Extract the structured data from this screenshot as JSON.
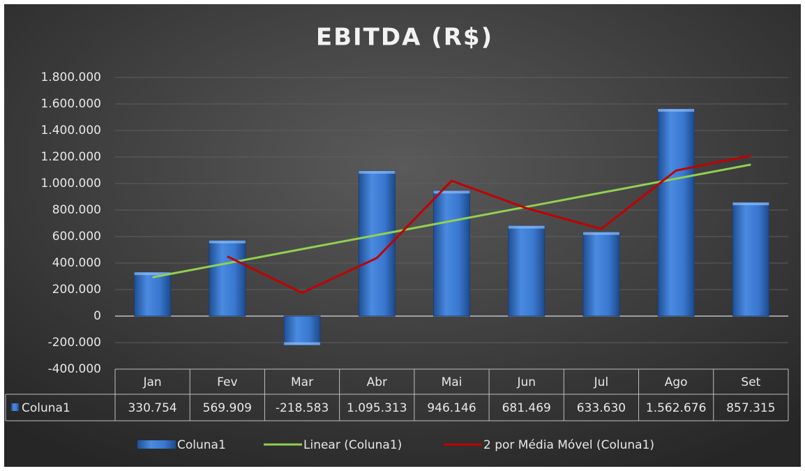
{
  "chart_data": {
    "type": "bar",
    "title": "EBITDA (R$)",
    "categories": [
      "Jan",
      "Fev",
      "Mar",
      "Abr",
      "Mai",
      "Jun",
      "Jul",
      "Ago",
      "Set"
    ],
    "series": [
      {
        "name": "Coluna1",
        "type": "bar",
        "color": "#2f6fc7",
        "values": [
          330754,
          569909,
          -218583,
          1095313,
          946146,
          681469,
          633630,
          1562676,
          857315
        ],
        "value_labels": [
          "330.754",
          "569.909",
          "-218.583",
          "1.095.313",
          "946.146",
          "681.469",
          "633.630",
          "1.562.676",
          "857.315"
        ]
      },
      {
        "name": "Linear (Coluna1)",
        "type": "line",
        "color": "#92d050",
        "values": [
          292617,
          398869,
          505121,
          611373,
          717625,
          823878,
          930130,
          1036382,
          1142634
        ]
      },
      {
        "name": "2 por Média Móvel (Coluna1)",
        "type": "line",
        "color": "#c00000",
        "values": [
          null,
          450332,
          175663,
          438365,
          1020730,
          813808,
          657550,
          1098153,
          1209996
        ]
      }
    ],
    "ylim": [
      -400000,
      1800000
    ],
    "yticks": [
      {
        "value": -400000,
        "label": "-400.000"
      },
      {
        "value": -200000,
        "label": "-200.000"
      },
      0,
      {
        "value": 200000,
        "label": "200.000"
      },
      {
        "value": 400000,
        "label": "400.000"
      },
      {
        "value": 600000,
        "label": "600.000"
      },
      {
        "value": 800000,
        "label": "800.000"
      },
      {
        "value": 1000000,
        "label": "1.000.000"
      },
      {
        "value": 1200000,
        "label": "1.200.000"
      },
      {
        "value": 1400000,
        "label": "1.400.000"
      },
      {
        "value": 1600000,
        "label": "1.600.000"
      },
      {
        "value": 1800000,
        "label": "1.800.000"
      }
    ],
    "grid": true
  }
}
